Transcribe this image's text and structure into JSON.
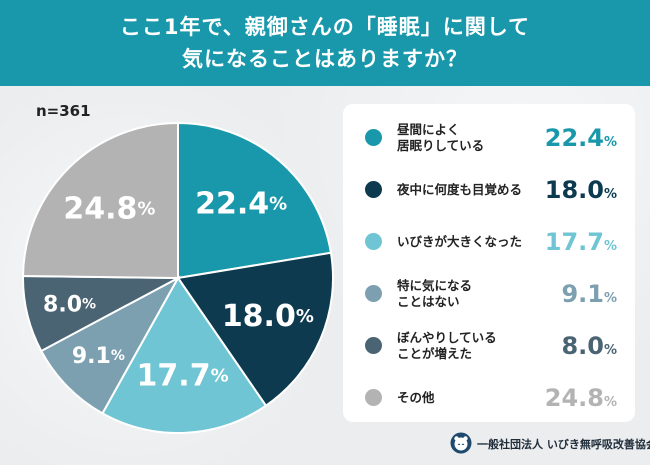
{
  "header": {
    "line1": "ここ1年で、親御さんの「睡眠」に関して",
    "line2": "気になることはありますか？"
  },
  "sample": "n=361",
  "colors": {
    "header_bg": "#1a98ab",
    "slices": [
      "#1a98ab",
      "#0e3a4f",
      "#6fc5d4",
      "#7da0b1",
      "#4b6473",
      "#b3b3b3"
    ]
  },
  "chart_data": {
    "type": "pie",
    "unit": "%",
    "slices": [
      {
        "label": "昼間によく\n居眠りしている",
        "value": 22.4
      },
      {
        "label": "夜中に何度も目覚める",
        "value": 18.0
      },
      {
        "label": "いびきが大きくなった",
        "value": 17.7
      },
      {
        "label": "特に気になる\nことはない",
        "value": 9.1
      },
      {
        "label": "ぼんやりしている\nことが増えた",
        "value": 8.0
      },
      {
        "label": "その他",
        "value": 24.8
      }
    ]
  },
  "legend": [
    {
      "line1": "昼間によく",
      "line2": "居眠りしている",
      "value": "22.4",
      "unit": "%"
    },
    {
      "line1": "夜中に何度も目覚める",
      "line2": "",
      "value": "18.0",
      "unit": "%"
    },
    {
      "line1": "いびきが大きくなった",
      "line2": "",
      "value": "17.7",
      "unit": "%"
    },
    {
      "line1": "特に気になる",
      "line2": "ことはない",
      "value": "9.1",
      "unit": "%"
    },
    {
      "line1": "ぼんやりしている",
      "line2": "ことが増えた",
      "value": "8.0",
      "unit": "%"
    },
    {
      "line1": "その他",
      "line2": "",
      "value": "24.8",
      "unit": "%"
    }
  ],
  "footer": {
    "org": "一般社団法人 いびき無呼吸改善協会",
    "logo_icon": "sleep-bear-logo-icon"
  }
}
